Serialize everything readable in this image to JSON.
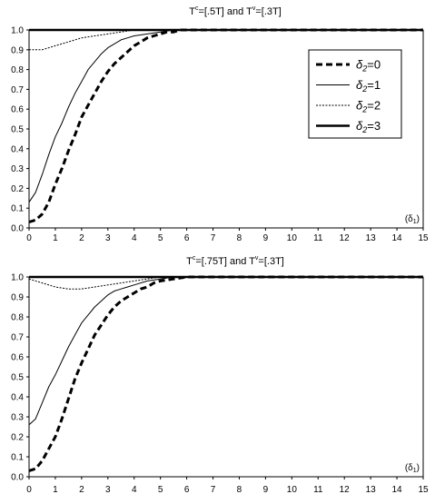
{
  "chart_data": [
    {
      "type": "line",
      "title_main": "T",
      "title_sup1": "c",
      "title_mid": "=[.5T] and T",
      "title_sup2": "v",
      "title_end": "=[.3T]",
      "xlabel": "(δ",
      "xlabel_sub": "1",
      "xlabel_end": ")",
      "xlim": [
        0,
        15
      ],
      "ylim": [
        0,
        1
      ],
      "xticks": [
        "0",
        "1",
        "2",
        "3",
        "4",
        "5",
        "6",
        "7",
        "8",
        "9",
        "10",
        "11",
        "12",
        "13",
        "14",
        "15"
      ],
      "yticks": [
        "0.0",
        "0.1",
        "0.2",
        "0.3",
        "0.4",
        "0.5",
        "0.6",
        "0.7",
        "0.8",
        "0.9",
        "1.0"
      ],
      "grid": false,
      "legend_position": "top-right",
      "series": [
        {
          "name": "δ2=0",
          "style": "dashed-thick",
          "x": [
            0,
            0.25,
            0.5,
            0.75,
            1,
            1.25,
            1.5,
            1.75,
            2,
            2.25,
            2.5,
            2.75,
            3,
            3.25,
            3.5,
            3.75,
            4,
            4.25,
            4.5,
            4.75,
            5,
            5.25,
            5.5,
            5.75,
            6,
            6.5,
            7,
            15
          ],
          "y": [
            0.03,
            0.04,
            0.07,
            0.13,
            0.22,
            0.3,
            0.39,
            0.47,
            0.56,
            0.62,
            0.68,
            0.74,
            0.79,
            0.83,
            0.86,
            0.89,
            0.92,
            0.94,
            0.96,
            0.97,
            0.98,
            0.99,
            0.99,
            1.0,
            1.0,
            1.0,
            1.0,
            1.0
          ]
        },
        {
          "name": "δ2=1",
          "style": "solid-thin",
          "x": [
            0,
            0.25,
            0.5,
            0.75,
            1,
            1.25,
            1.5,
            1.75,
            2,
            2.25,
            2.5,
            2.75,
            3,
            3.25,
            3.5,
            3.75,
            4,
            4.5,
            5,
            5.5,
            6,
            7,
            15
          ],
          "y": [
            0.13,
            0.18,
            0.27,
            0.37,
            0.46,
            0.53,
            0.61,
            0.68,
            0.74,
            0.8,
            0.84,
            0.88,
            0.91,
            0.93,
            0.95,
            0.96,
            0.97,
            0.98,
            0.99,
            1.0,
            1.0,
            1.0,
            1.0
          ]
        },
        {
          "name": "δ2=2",
          "style": "dotted-thin",
          "x": [
            0,
            0.5,
            1,
            1.5,
            2,
            2.5,
            3,
            3.5,
            4,
            5,
            15
          ],
          "y": [
            0.9,
            0.9,
            0.92,
            0.94,
            0.96,
            0.97,
            0.98,
            0.99,
            1.0,
            1.0,
            1.0
          ]
        },
        {
          "name": "δ2=3",
          "style": "solid-thick",
          "x": [
            0,
            15
          ],
          "y": [
            1.0,
            1.0
          ]
        }
      ],
      "legend": [
        {
          "sym": "δ",
          "sub": "2",
          "val": "=0",
          "style": "dashed-thick"
        },
        {
          "sym": "δ",
          "sub": "2",
          "val": "=1",
          "style": "solid-thin"
        },
        {
          "sym": "δ",
          "sub": "2",
          "val": "=2",
          "style": "dotted-thin"
        },
        {
          "sym": "δ",
          "sub": "2",
          "val": "=3",
          "style": "solid-thick"
        }
      ]
    },
    {
      "type": "line",
      "title_main": "T",
      "title_sup1": "c",
      "title_mid": "=[.75T] and T",
      "title_sup2": "v",
      "title_end": "=[.3T]",
      "xlabel": "(δ",
      "xlabel_sub": "1",
      "xlabel_end": ")",
      "xlim": [
        0,
        15
      ],
      "ylim": [
        0,
        1
      ],
      "xticks": [
        "0",
        "1",
        "2",
        "3",
        "4",
        "5",
        "6",
        "7",
        "8",
        "9",
        "10",
        "11",
        "12",
        "13",
        "14",
        "15"
      ],
      "yticks": [
        "0.0",
        "0.1",
        "0.2",
        "0.3",
        "0.4",
        "0.5",
        "0.6",
        "0.7",
        "0.8",
        "0.9",
        "1.0"
      ],
      "grid": false,
      "series": [
        {
          "name": "δ2=0",
          "style": "dashed-thick",
          "x": [
            0,
            0.25,
            0.5,
            0.75,
            1,
            1.25,
            1.5,
            1.75,
            2,
            2.25,
            2.5,
            2.75,
            3,
            3.25,
            3.5,
            3.75,
            4,
            4.25,
            4.5,
            4.75,
            5,
            5.5,
            6,
            6.5,
            7,
            15
          ],
          "y": [
            0.03,
            0.04,
            0.08,
            0.14,
            0.2,
            0.29,
            0.39,
            0.49,
            0.57,
            0.64,
            0.71,
            0.76,
            0.81,
            0.85,
            0.88,
            0.9,
            0.92,
            0.94,
            0.95,
            0.97,
            0.98,
            0.99,
            1.0,
            1.0,
            1.0,
            1.0
          ]
        },
        {
          "name": "δ2=1",
          "style": "solid-thin",
          "x": [
            0,
            0.25,
            0.5,
            0.75,
            1,
            1.25,
            1.5,
            1.75,
            2,
            2.25,
            2.5,
            2.75,
            3,
            3.25,
            3.5,
            3.75,
            4,
            4.5,
            5,
            5.5,
            6,
            7,
            15
          ],
          "y": [
            0.26,
            0.29,
            0.37,
            0.45,
            0.51,
            0.58,
            0.65,
            0.71,
            0.77,
            0.81,
            0.85,
            0.88,
            0.91,
            0.93,
            0.94,
            0.95,
            0.96,
            0.98,
            0.99,
            1.0,
            1.0,
            1.0,
            1.0
          ]
        },
        {
          "name": "δ2=2",
          "style": "dotted-thin",
          "x": [
            0,
            0.5,
            1,
            1.5,
            2,
            2.5,
            3,
            3.5,
            4,
            4.5,
            5,
            6,
            15
          ],
          "y": [
            0.99,
            0.97,
            0.95,
            0.94,
            0.94,
            0.95,
            0.96,
            0.97,
            0.98,
            0.99,
            1.0,
            1.0,
            1.0
          ]
        },
        {
          "name": "δ2=3",
          "style": "solid-thick",
          "x": [
            0,
            15
          ],
          "y": [
            1.0,
            1.0
          ]
        }
      ]
    }
  ]
}
